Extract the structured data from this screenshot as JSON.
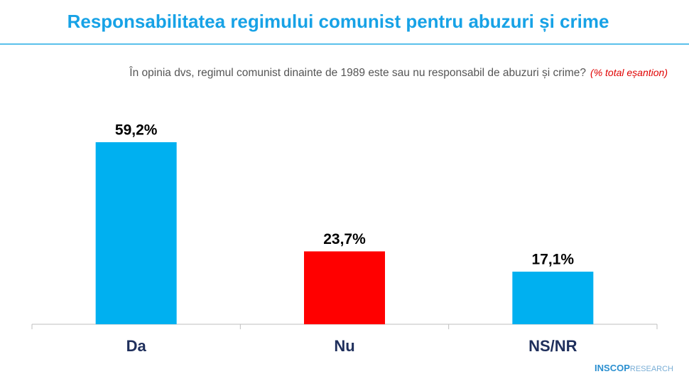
{
  "chart_data": {
    "type": "bar",
    "title": "Responsabilitatea regimului comunist pentru abuzuri și crime",
    "subtitle": "În opinia dvs, regimul comunist dinainte de 1989 este sau nu responsabil de abuzuri și crime?",
    "subtitle_note": "(% total eșantion)",
    "categories": [
      "Da",
      "Nu",
      "NS/NR"
    ],
    "values": [
      59.2,
      23.7,
      17.1
    ],
    "value_labels": [
      "59,2%",
      "23,7%",
      "17,1%"
    ],
    "colors": [
      "#00b0f0",
      "#ff0000",
      "#00b0f0"
    ],
    "logo": {
      "brand": "INSCOP",
      "suffix": "RESEARCH"
    }
  }
}
